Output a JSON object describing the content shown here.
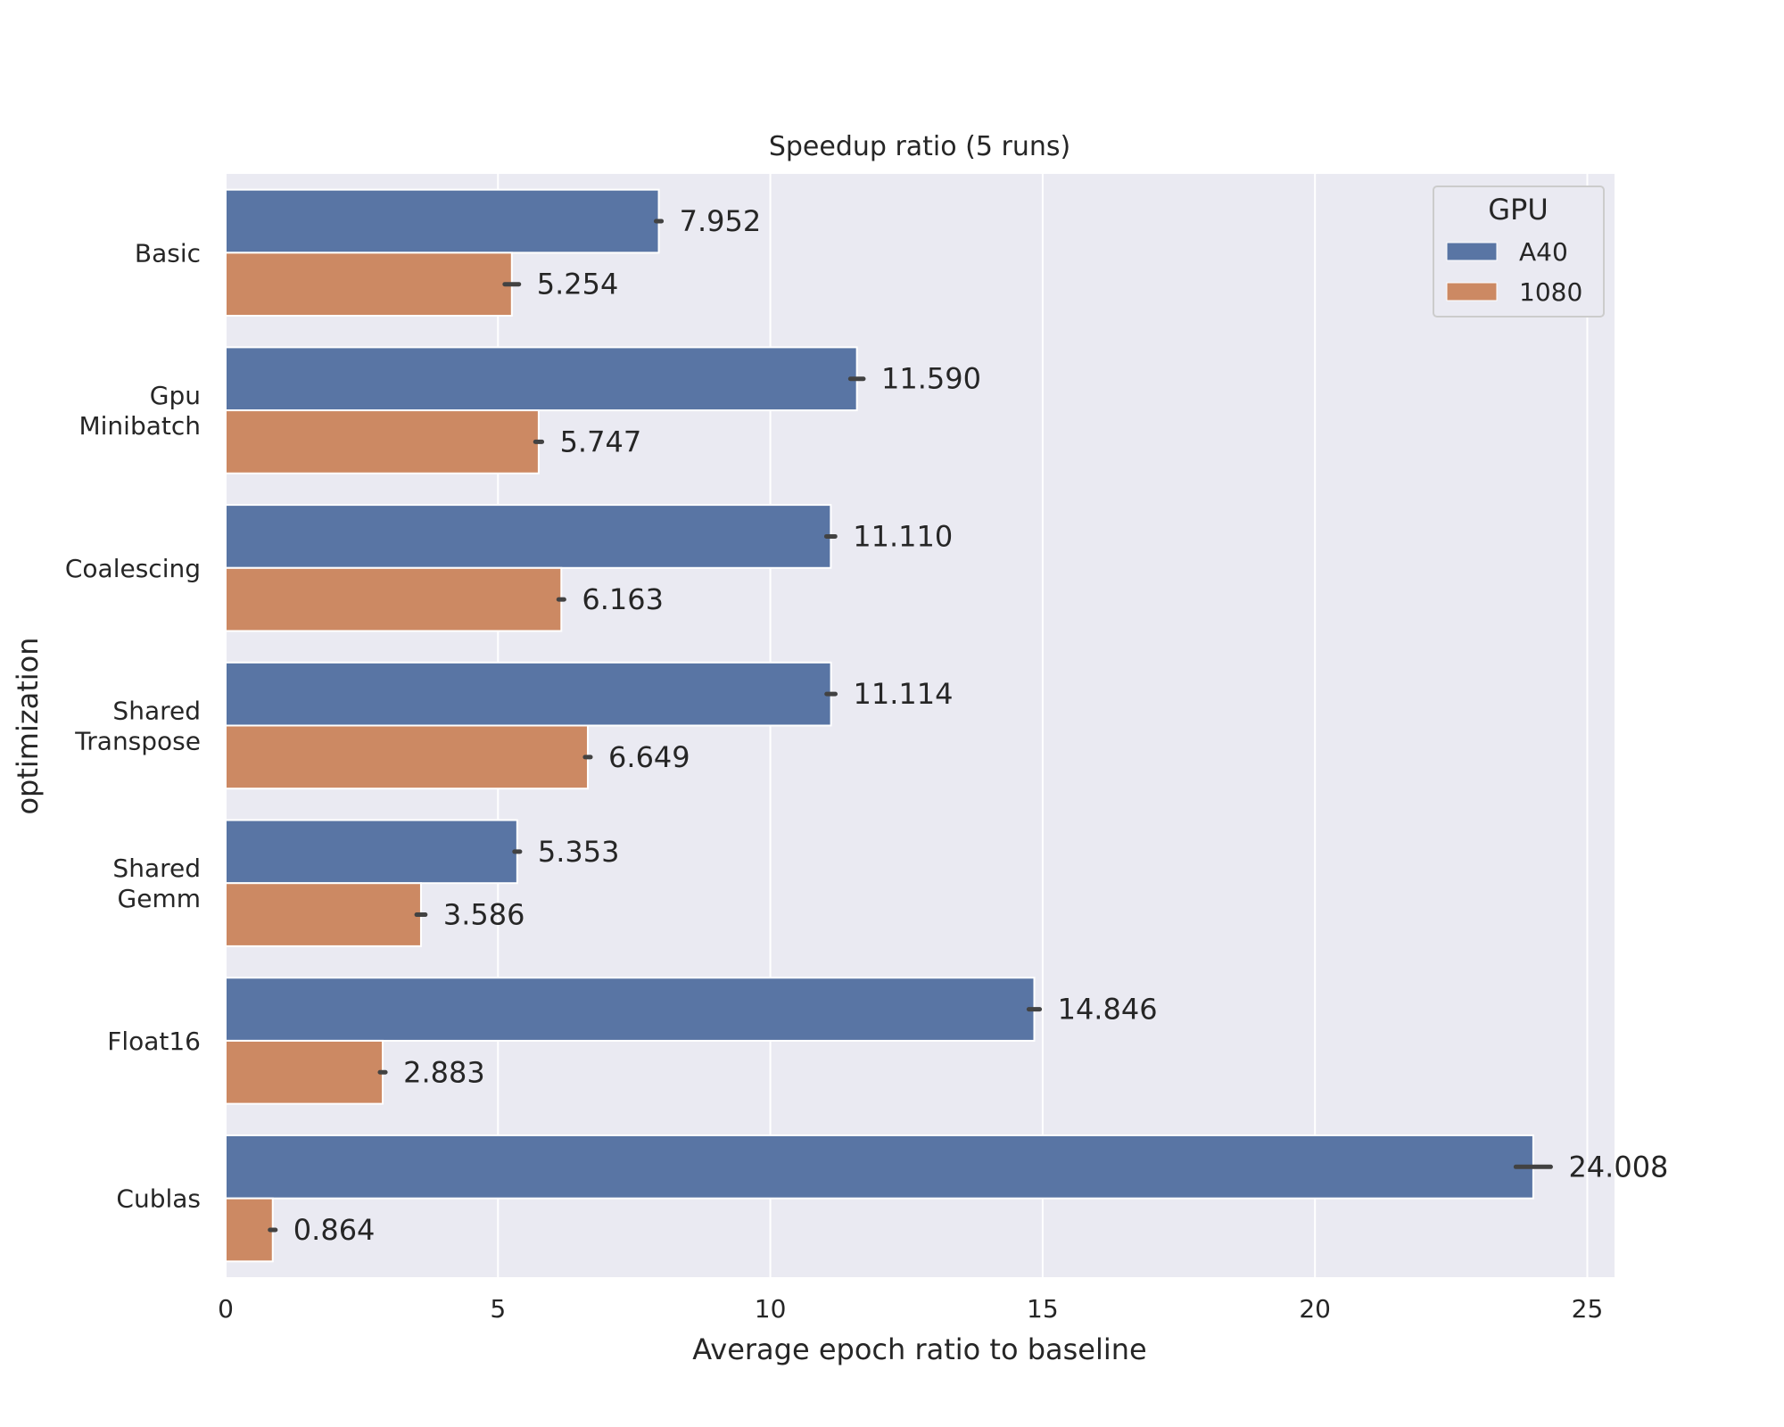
{
  "chart_data": {
    "type": "bar",
    "orientation": "horizontal",
    "title": "Speedup ratio (5 runs)",
    "xlabel": "Average epoch ratio to baseline",
    "ylabel": "optimization",
    "categories": [
      [
        "Basic"
      ],
      [
        "Gpu",
        "Minibatch"
      ],
      [
        "Coalescing"
      ],
      [
        "Shared",
        "Transpose"
      ],
      [
        "Shared",
        "Gemm"
      ],
      [
        "Float16"
      ],
      [
        "Cublas"
      ]
    ],
    "xlim": [
      0,
      25.5
    ],
    "xticks": [
      0,
      5,
      10,
      15,
      20,
      25
    ],
    "grid": true,
    "legend": {
      "title": "GPU",
      "placement": "top-right"
    },
    "series": [
      {
        "name": "A40",
        "color": "#5975a4",
        "values": [
          7.952,
          11.59,
          11.11,
          11.114,
          5.353,
          14.846,
          24.008
        ],
        "labels": [
          "7.952",
          "11.590",
          "11.110",
          "11.114",
          "5.353",
          "14.846",
          "24.008"
        ],
        "error": [
          0.05,
          0.12,
          0.08,
          0.08,
          0.05,
          0.1,
          0.32
        ]
      },
      {
        "name": "1080",
        "color": "#cc8963",
        "values": [
          5.254,
          5.747,
          6.163,
          6.649,
          3.586,
          2.883,
          0.864
        ],
        "labels": [
          "5.254",
          "5.747",
          "6.163",
          "6.649",
          "3.586",
          "2.883",
          "0.864"
        ],
        "error": [
          0.13,
          0.06,
          0.05,
          0.05,
          0.08,
          0.05,
          0.05
        ]
      }
    ]
  }
}
